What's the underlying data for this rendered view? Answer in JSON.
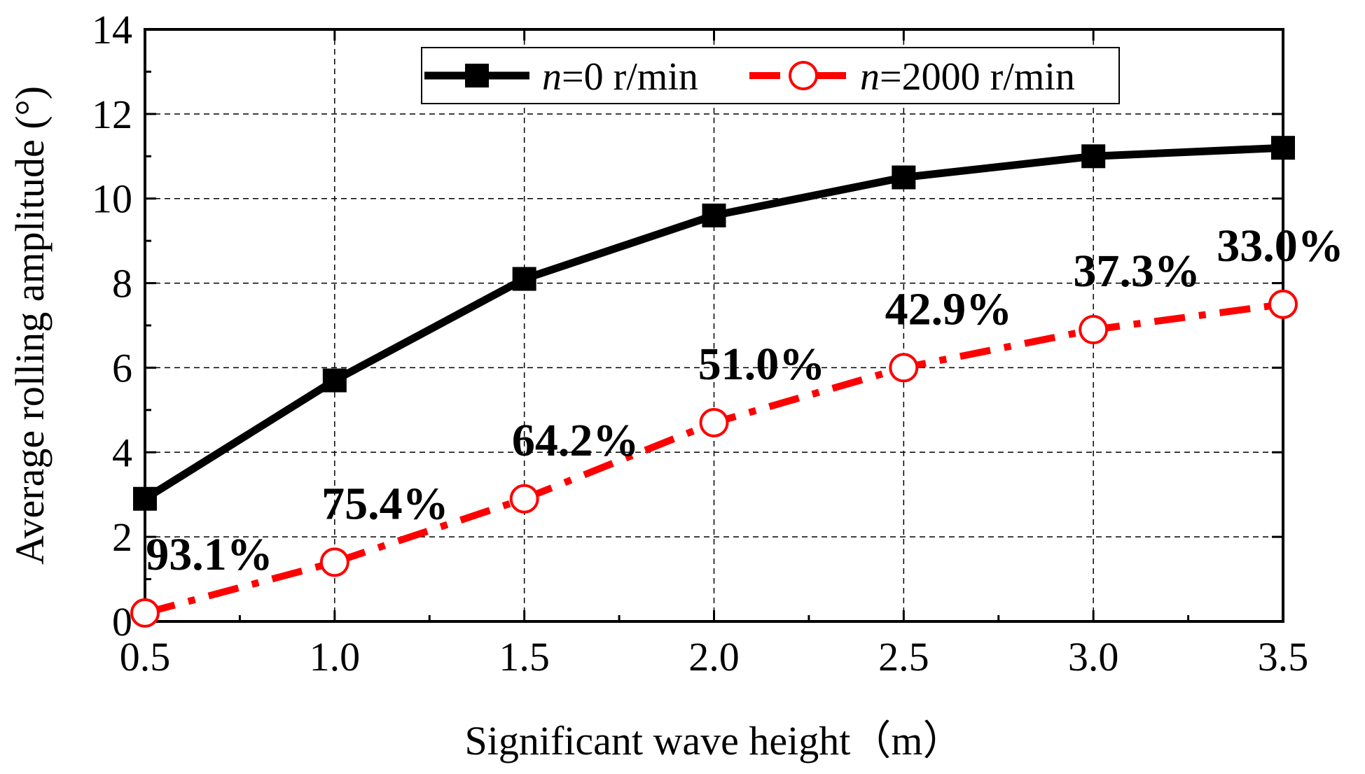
{
  "chart_data": {
    "type": "line",
    "xlabel": "Significant wave height（m）",
    "ylabel": "Average rolling amplitude (°)",
    "xlim": [
      0.5,
      3.5
    ],
    "ylim": [
      0,
      14
    ],
    "x_ticks": [
      "0.5",
      "1.0",
      "1.5",
      "2.0",
      "2.5",
      "3.0",
      "3.5"
    ],
    "y_ticks": [
      "0",
      "2",
      "4",
      "6",
      "8",
      "10",
      "12",
      "14"
    ],
    "grid": true,
    "legend_position": "top-center",
    "x": [
      0.5,
      1.0,
      1.5,
      2.0,
      2.5,
      3.0,
      3.5
    ],
    "series": [
      {
        "name": "n=0 r/min",
        "legend_italic": "n",
        "legend_rest": "=0 r/min",
        "color": "#000000",
        "line_style": "solid",
        "marker": "filled-square",
        "values": [
          2.9,
          5.7,
          8.1,
          9.6,
          10.5,
          11.0,
          11.2
        ]
      },
      {
        "name": "n=2000 r/min",
        "legend_italic": "n",
        "legend_rest": "=2000 r/min",
        "color": "#ff0000",
        "line_style": "dash-dot",
        "marker": "open-circle",
        "values": [
          0.2,
          1.4,
          2.9,
          4.7,
          6.0,
          6.9,
          7.5
        ]
      }
    ],
    "annotations": [
      "93.1%",
      "75.4%",
      "64.2%",
      "51.0%",
      "42.9%",
      "37.3%",
      "33.0%"
    ]
  }
}
